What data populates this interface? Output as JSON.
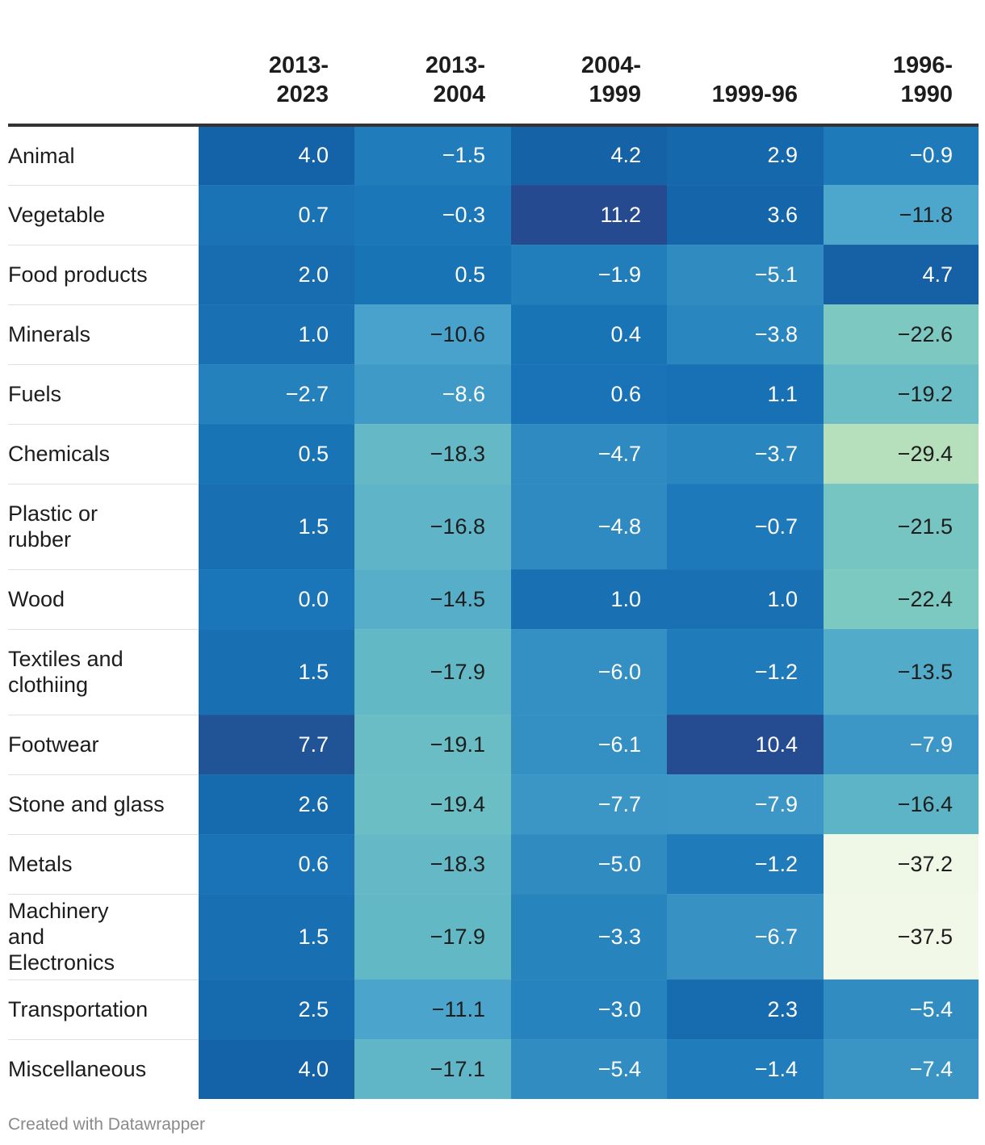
{
  "chart_data": {
    "type": "table",
    "columns": [
      "2013-\n2023",
      "2013-\n2004",
      "2004-\n1999",
      "1999-96",
      "1996-\n1990"
    ],
    "rows": [
      {
        "label": "Animal",
        "values": [
          "4.0",
          "−1.5",
          "4.2",
          "2.9",
          "−0.9"
        ]
      },
      {
        "label": "Vegetable",
        "values": [
          "0.7",
          "−0.3",
          "11.2",
          "3.6",
          "−11.8"
        ]
      },
      {
        "label": "Food products",
        "values": [
          "2.0",
          "0.5",
          "−1.9",
          "−5.1",
          "4.7"
        ]
      },
      {
        "label": "Minerals",
        "values": [
          "1.0",
          "−10.6",
          "0.4",
          "−3.8",
          "−22.6"
        ]
      },
      {
        "label": "Fuels",
        "values": [
          "−2.7",
          "−8.6",
          "0.6",
          "1.1",
          "−19.2"
        ]
      },
      {
        "label": "Chemicals",
        "values": [
          "0.5",
          "−18.3",
          "−4.7",
          "−3.7",
          "−29.4"
        ]
      },
      {
        "label": "Plastic or rubber",
        "values": [
          "1.5",
          "−16.8",
          "−4.8",
          "−0.7",
          "−21.5"
        ]
      },
      {
        "label": "Wood",
        "values": [
          "0.0",
          "−14.5",
          "1.0",
          "1.0",
          "−22.4"
        ]
      },
      {
        "label": "Textiles and clothiing",
        "values": [
          "1.5",
          "−17.9",
          "−6.0",
          "−1.2",
          "−13.5"
        ]
      },
      {
        "label": "Footwear",
        "values": [
          "7.7",
          "−19.1",
          "−6.1",
          "10.4",
          "−7.9"
        ]
      },
      {
        "label": "Stone and glass",
        "values": [
          "2.6",
          "−19.4",
          "−7.7",
          "−7.9",
          "−16.4"
        ]
      },
      {
        "label": "Metals",
        "values": [
          "0.6",
          "−18.3",
          "−5.0",
          "−1.2",
          "−37.2"
        ]
      },
      {
        "label": "Machinery and Electronics",
        "values": [
          "1.5",
          "−17.9",
          "−3.3",
          "−6.7",
          "−37.5"
        ]
      },
      {
        "label": "Transportation",
        "values": [
          "2.5",
          "−11.1",
          "−3.0",
          "2.3",
          "−5.4"
        ]
      },
      {
        "label": "Miscellaneous",
        "values": [
          "4.0",
          "−17.1",
          "−5.4",
          "−1.4",
          "−7.4"
        ]
      }
    ],
    "color_scale": {
      "domain": [
        -37.5,
        -29.4,
        -22.5,
        -17.9,
        -11.0,
        -5.0,
        0.0,
        4.0,
        7.7,
        11.2
      ],
      "colors": [
        "#f1f8e8",
        "#b6e0bc",
        "#7cc9c1",
        "#63b8c6",
        "#4aa4cc",
        "#2f8bc0",
        "#1a76b8",
        "#1463a8",
        "#215497",
        "#264a8f"
      ],
      "light_text_color": "#ffffff",
      "dark_text_color": "#1d1d1d",
      "light_text_threshold": -9.5
    }
  },
  "credit": "Created with Datawrapper"
}
